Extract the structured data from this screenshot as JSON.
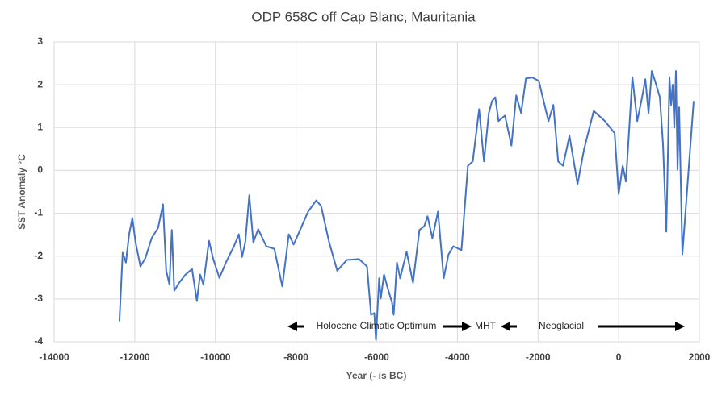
{
  "chart_data": {
    "type": "line",
    "title": "ODP 658C off Cap Blanc, Mauritania",
    "x_label": "Year (- is BC)",
    "y_label": "SST Anomaly °C",
    "annotations": [
      "Holocene Climatic Optimum",
      "MHT",
      "Neoglacial"
    ],
    "xlim": [
      -14000,
      2000
    ],
    "xticks": [
      -14000,
      -12000,
      -10000,
      -8000,
      -6000,
      -4000,
      -2000,
      0,
      2000
    ],
    "ylim": [
      -4,
      3
    ],
    "yticks": [
      -4,
      -3,
      -2,
      -1,
      0,
      1,
      2,
      3
    ],
    "grid": true,
    "series": [
      {
        "color": "#4472c4",
        "x": [
          -12380,
          -12300,
          -12220,
          -12140,
          -12060,
          -11980,
          -11860,
          -11740,
          -11580,
          -11420,
          -11300,
          -11220,
          -11140,
          -11080,
          -11020,
          -10900,
          -10740,
          -10580,
          -10460,
          -10380,
          -10300,
          -10160,
          -10060,
          -9900,
          -9740,
          -9540,
          -9420,
          -9340,
          -9260,
          -9160,
          -9060,
          -8940,
          -8740,
          -8540,
          -8340,
          -8180,
          -8060,
          -7900,
          -7700,
          -7500,
          -7380,
          -7180,
          -6980,
          -6740,
          -6440,
          -6240,
          -6140,
          -6060,
          -6020,
          -5940,
          -5900,
          -5820,
          -5740,
          -5620,
          -5580,
          -5500,
          -5420,
          -5260,
          -5100,
          -4940,
          -4820,
          -4740,
          -4620,
          -4480,
          -4340,
          -4220,
          -4100,
          -3900,
          -3740,
          -3620,
          -3460,
          -3340,
          -3220,
          -3140,
          -3060,
          -2980,
          -2820,
          -2660,
          -2540,
          -2420,
          -2300,
          -2140,
          -1980,
          -1740,
          -1620,
          -1500,
          -1380,
          -1220,
          -1020,
          -860,
          -620,
          -340,
          -100,
          0,
          100,
          180,
          340,
          460,
          580,
          660,
          740,
          820,
          900,
          1020,
          1100,
          1180,
          1260,
          1300,
          1340,
          1380,
          1420,
          1460,
          1500,
          1580,
          1860
        ],
        "values": [
          -3.52,
          -1.92,
          -2.15,
          -1.49,
          -1.11,
          -1.68,
          -2.24,
          -2.05,
          -1.58,
          -1.34,
          -0.79,
          -2.34,
          -2.66,
          -1.39,
          -2.81,
          -2.62,
          -2.43,
          -2.3,
          -3.05,
          -2.43,
          -2.66,
          -1.64,
          -2.05,
          -2.51,
          -2.15,
          -1.77,
          -1.49,
          -2.02,
          -1.68,
          -0.58,
          -1.68,
          -1.37,
          -1.77,
          -1.83,
          -2.71,
          -1.49,
          -1.73,
          -1.39,
          -0.96,
          -0.7,
          -0.83,
          -1.68,
          -2.34,
          -2.09,
          -2.07,
          -2.24,
          -3.37,
          -3.33,
          -3.95,
          -2.52,
          -2.99,
          -2.43,
          -2.71,
          -3.09,
          -3.37,
          -2.15,
          -2.52,
          -1.9,
          -2.62,
          -1.39,
          -1.3,
          -1.07,
          -1.58,
          -0.96,
          -2.52,
          -1.96,
          -1.77,
          -1.86,
          0.11,
          0.21,
          1.43,
          0.21,
          1.34,
          1.62,
          1.71,
          1.15,
          1.28,
          0.58,
          1.75,
          1.34,
          2.15,
          2.17,
          2.09,
          1.15,
          1.53,
          0.21,
          0.11,
          0.81,
          -0.32,
          0.49,
          1.39,
          1.15,
          0.87,
          -0.55,
          0.11,
          -0.26,
          2.18,
          1.15,
          1.71,
          2.13,
          1.34,
          2.32,
          2.09,
          1.71,
          0.58,
          -1.43,
          2.18,
          1.53,
          2.0,
          1.0,
          2.32,
          0.02,
          1.47,
          -1.96,
          1.62
        ]
      }
    ]
  }
}
